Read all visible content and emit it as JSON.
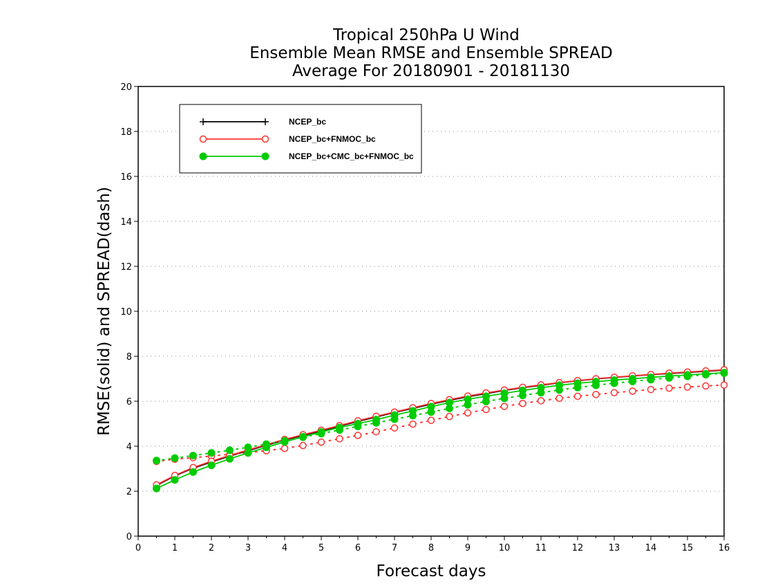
{
  "chart_data": {
    "type": "line",
    "title_lines": [
      "Tropical 250hPa U Wind",
      "Ensemble Mean RMSE and Ensemble SPREAD",
      "Average For 20180901 - 20181130"
    ],
    "xlabel": "Forecast days",
    "ylabel": "RMSE(solid) and SPREAD(dash)",
    "xlim": [
      0,
      16
    ],
    "ylim": [
      0,
      20
    ],
    "xticks": [
      "0",
      "1",
      "2",
      "3",
      "4",
      "5",
      "6",
      "7",
      "8",
      "9",
      "10",
      "11",
      "12",
      "13",
      "14",
      "15",
      "16"
    ],
    "yticks": [
      "0",
      "2",
      "4",
      "6",
      "8",
      "10",
      "12",
      "14",
      "16",
      "18",
      "20"
    ],
    "grid": "horizontal dotted",
    "legend_position": "top-left",
    "x": [
      0.5,
      1,
      1.5,
      2,
      2.5,
      3,
      3.5,
      4,
      4.5,
      5,
      5.5,
      6,
      6.5,
      7,
      7.5,
      8,
      8.5,
      9,
      9.5,
      10,
      10.5,
      11,
      11.5,
      12,
      12.5,
      13,
      13.5,
      14,
      14.5,
      15,
      15.5,
      16
    ],
    "series": [
      {
        "name": "NCEP_bc",
        "color": "#000000",
        "marker": "plus",
        "rmse": [
          2.25,
          2.68,
          3.02,
          3.3,
          3.56,
          3.8,
          4.04,
          4.27,
          4.48,
          4.68,
          4.89,
          5.1,
          5.3,
          5.5,
          5.68,
          5.87,
          6.04,
          6.2,
          6.34,
          6.48,
          6.6,
          6.71,
          6.82,
          6.91,
          6.99,
          7.06,
          7.12,
          7.18,
          7.23,
          7.28,
          7.33,
          7.38
        ],
        "spread": null
      },
      {
        "name": "NCEP_bc+FNMOC_bc",
        "color": "#ff3333",
        "marker": "open-circle",
        "rmse": [
          2.28,
          2.7,
          3.05,
          3.33,
          3.59,
          3.83,
          4.07,
          4.3,
          4.51,
          4.71,
          4.92,
          5.13,
          5.33,
          5.52,
          5.71,
          5.9,
          6.07,
          6.23,
          6.37,
          6.5,
          6.62,
          6.73,
          6.83,
          6.92,
          7.0,
          7.07,
          7.13,
          7.19,
          7.25,
          7.3,
          7.35,
          7.4
        ],
        "spread": [
          3.32,
          3.42,
          3.49,
          3.56,
          3.64,
          3.71,
          3.8,
          3.9,
          4.03,
          4.18,
          4.33,
          4.48,
          4.64,
          4.81,
          4.98,
          5.15,
          5.32,
          5.48,
          5.63,
          5.77,
          5.9,
          6.02,
          6.13,
          6.22,
          6.3,
          6.38,
          6.45,
          6.52,
          6.58,
          6.63,
          6.68,
          6.72
        ]
      },
      {
        "name": "NCEP_bc+CMC_bc+FNMOC_bc",
        "color": "#00cc00",
        "marker": "filled-circle",
        "rmse": [
          2.12,
          2.5,
          2.85,
          3.15,
          3.44,
          3.7,
          3.95,
          4.19,
          4.42,
          4.63,
          4.83,
          5.0,
          5.18,
          5.38,
          5.57,
          5.76,
          5.94,
          6.09,
          6.22,
          6.35,
          6.48,
          6.6,
          6.71,
          6.8,
          6.87,
          6.94,
          7.0,
          7.06,
          7.12,
          7.17,
          7.22,
          7.27
        ],
        "spread": [
          3.36,
          3.47,
          3.58,
          3.7,
          3.82,
          3.95,
          4.09,
          4.24,
          4.4,
          4.56,
          4.72,
          4.88,
          5.04,
          5.2,
          5.36,
          5.52,
          5.68,
          5.84,
          5.99,
          6.13,
          6.26,
          6.38,
          6.5,
          6.61,
          6.71,
          6.8,
          6.88,
          6.96,
          7.04,
          7.11,
          7.18,
          7.25
        ]
      }
    ]
  }
}
